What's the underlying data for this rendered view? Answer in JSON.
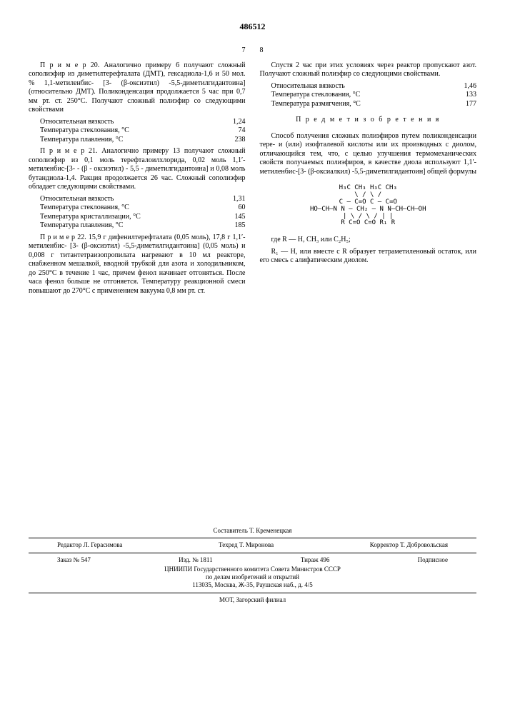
{
  "patent_number": "486512",
  "left_col_num": "7",
  "right_col_num": "8",
  "left": {
    "p1": "П р и м е р 20. Аналогично примеру 6 получают сложный сополиэфир из диметилтерефталата (ДМТ), гексадиола-1,6 и 50 мол. % 1,1-метиленбис- [3- (β-оксиэтил) -5,5-диметилгидантоина] (относительно ДМТ). Поликонденсация продолжается 5 час при 0,7 мм рт. ст. 250°С. Получают сложный полиэфир со следующими свойствами",
    "t1": {
      "r1": {
        "l": "Относительная вязкость",
        "v": "1,24"
      },
      "r2": {
        "l": "Температура стеклования, °С",
        "v": "74"
      },
      "r3": {
        "l": "Температура плавления, °С",
        "v": "238"
      }
    },
    "p2": "П р и м е р 21. Аналогично примеру 13 получают сложный сополиэфир из 0,1 моль терефталоилхлорида, 0,02 моль 1,1′-метиленбис-[3- - (β - оксиэтил) - 5,5 - диметилгидантоина] и 0,08 моль бутандиола-1,4. Ракция продолжается 26 час. Сложный сополиэфир обладает следующими свойствами.",
    "t2": {
      "r1": {
        "l": "Относительная вязкость",
        "v": "1,31"
      },
      "r2": {
        "l": "Температура стеклования, °С",
        "v": "60"
      },
      "r3": {
        "l": "Температура кристаллизации, °С",
        "v": "145"
      },
      "r4": {
        "l": "Температура плавления, °С",
        "v": "185"
      }
    },
    "p3": "П р и м е р 22. 15,9 г дифенилтерефталата (0,05 моль), 17,8 г 1,1′-метиленбис- [3- (β-оксиэтил) -5,5-диметилгидантоина] (0,05 моль) и 0,008 г титантетраизопропилата нагревают в 10 мл реакторе, снабженном мешалкой, вводной трубкой для азота и холодильником, до 250°С в течение 1 час, причем фенол начинает отгоняться. После часа фенол больше не отгоняется. Температуру реакционной смеси повышают до 270°С с применением вакуума 0,8 мм рт. ст."
  },
  "right": {
    "p1": "Спустя 2 час при этих условиях через реактор пропускают азот. Получают сложный полиэфир со следующими свойствами.",
    "t1": {
      "r1": {
        "l": "Относительная вязкость",
        "v": "1,46"
      },
      "r2": {
        "l": "Температура стеклования, °С",
        "v": "133"
      },
      "r3": {
        "l": "Температура размягчения, °С",
        "v": "177"
      }
    },
    "section": "П р е д м е т  и з о б р е т е н и я",
    "p2": "Способ получения сложных полиэфиров путем поликонденсации тере- и (или) изофталевой кислоты или их производных с диолом, отличающийся тем, что, с целью улучшения термомеханических свойств получаемых полиэфиров, в качестве диола используют 1,1′-метиленбис-[3- (β-оксиалкил) -5,5-диметилгидантоин] общей формулы",
    "formula_l1": "H₃C   CH₃           H₃C   CH₃",
    "formula_l2": "   \\  /                \\  /",
    "formula_l3": "    C — C=O             C — C=O",
    "formula_l4": "HO–CH–N    N — CH₂ — N    N–CH–CH–OH",
    "formula_l5": " |   \\   /           \\   /   |  |",
    "formula_l6": " R    C=O             C=O    R₁ R",
    "p3": "где R — H, CH₃ или C₂H₅;",
    "p4": "R₁ — H, или вместе с R образует тетраметиленовый остаток, или его смесь с алифатическим диолом."
  },
  "footer": {
    "compiler": "Составитель Т. Кременецкая",
    "editor": "Редактор Л. Герасимова",
    "techred": "Техред Т. Миронова",
    "corrector": "Корректор Т. Добровольская",
    "order": "Заказ № 547",
    "izd": "Изд. № 1811",
    "tirage": "Тираж 496",
    "podpisnoe": "Подписное",
    "org": "ЦНИИПИ Государственного комитета Совета Министров СССР",
    "org2": "по делам изобретений и открытий",
    "addr": "113035, Москва, Ж-35, Раушская наб., д. 4/5",
    "printer": "МОТ, Загорский филиал"
  }
}
